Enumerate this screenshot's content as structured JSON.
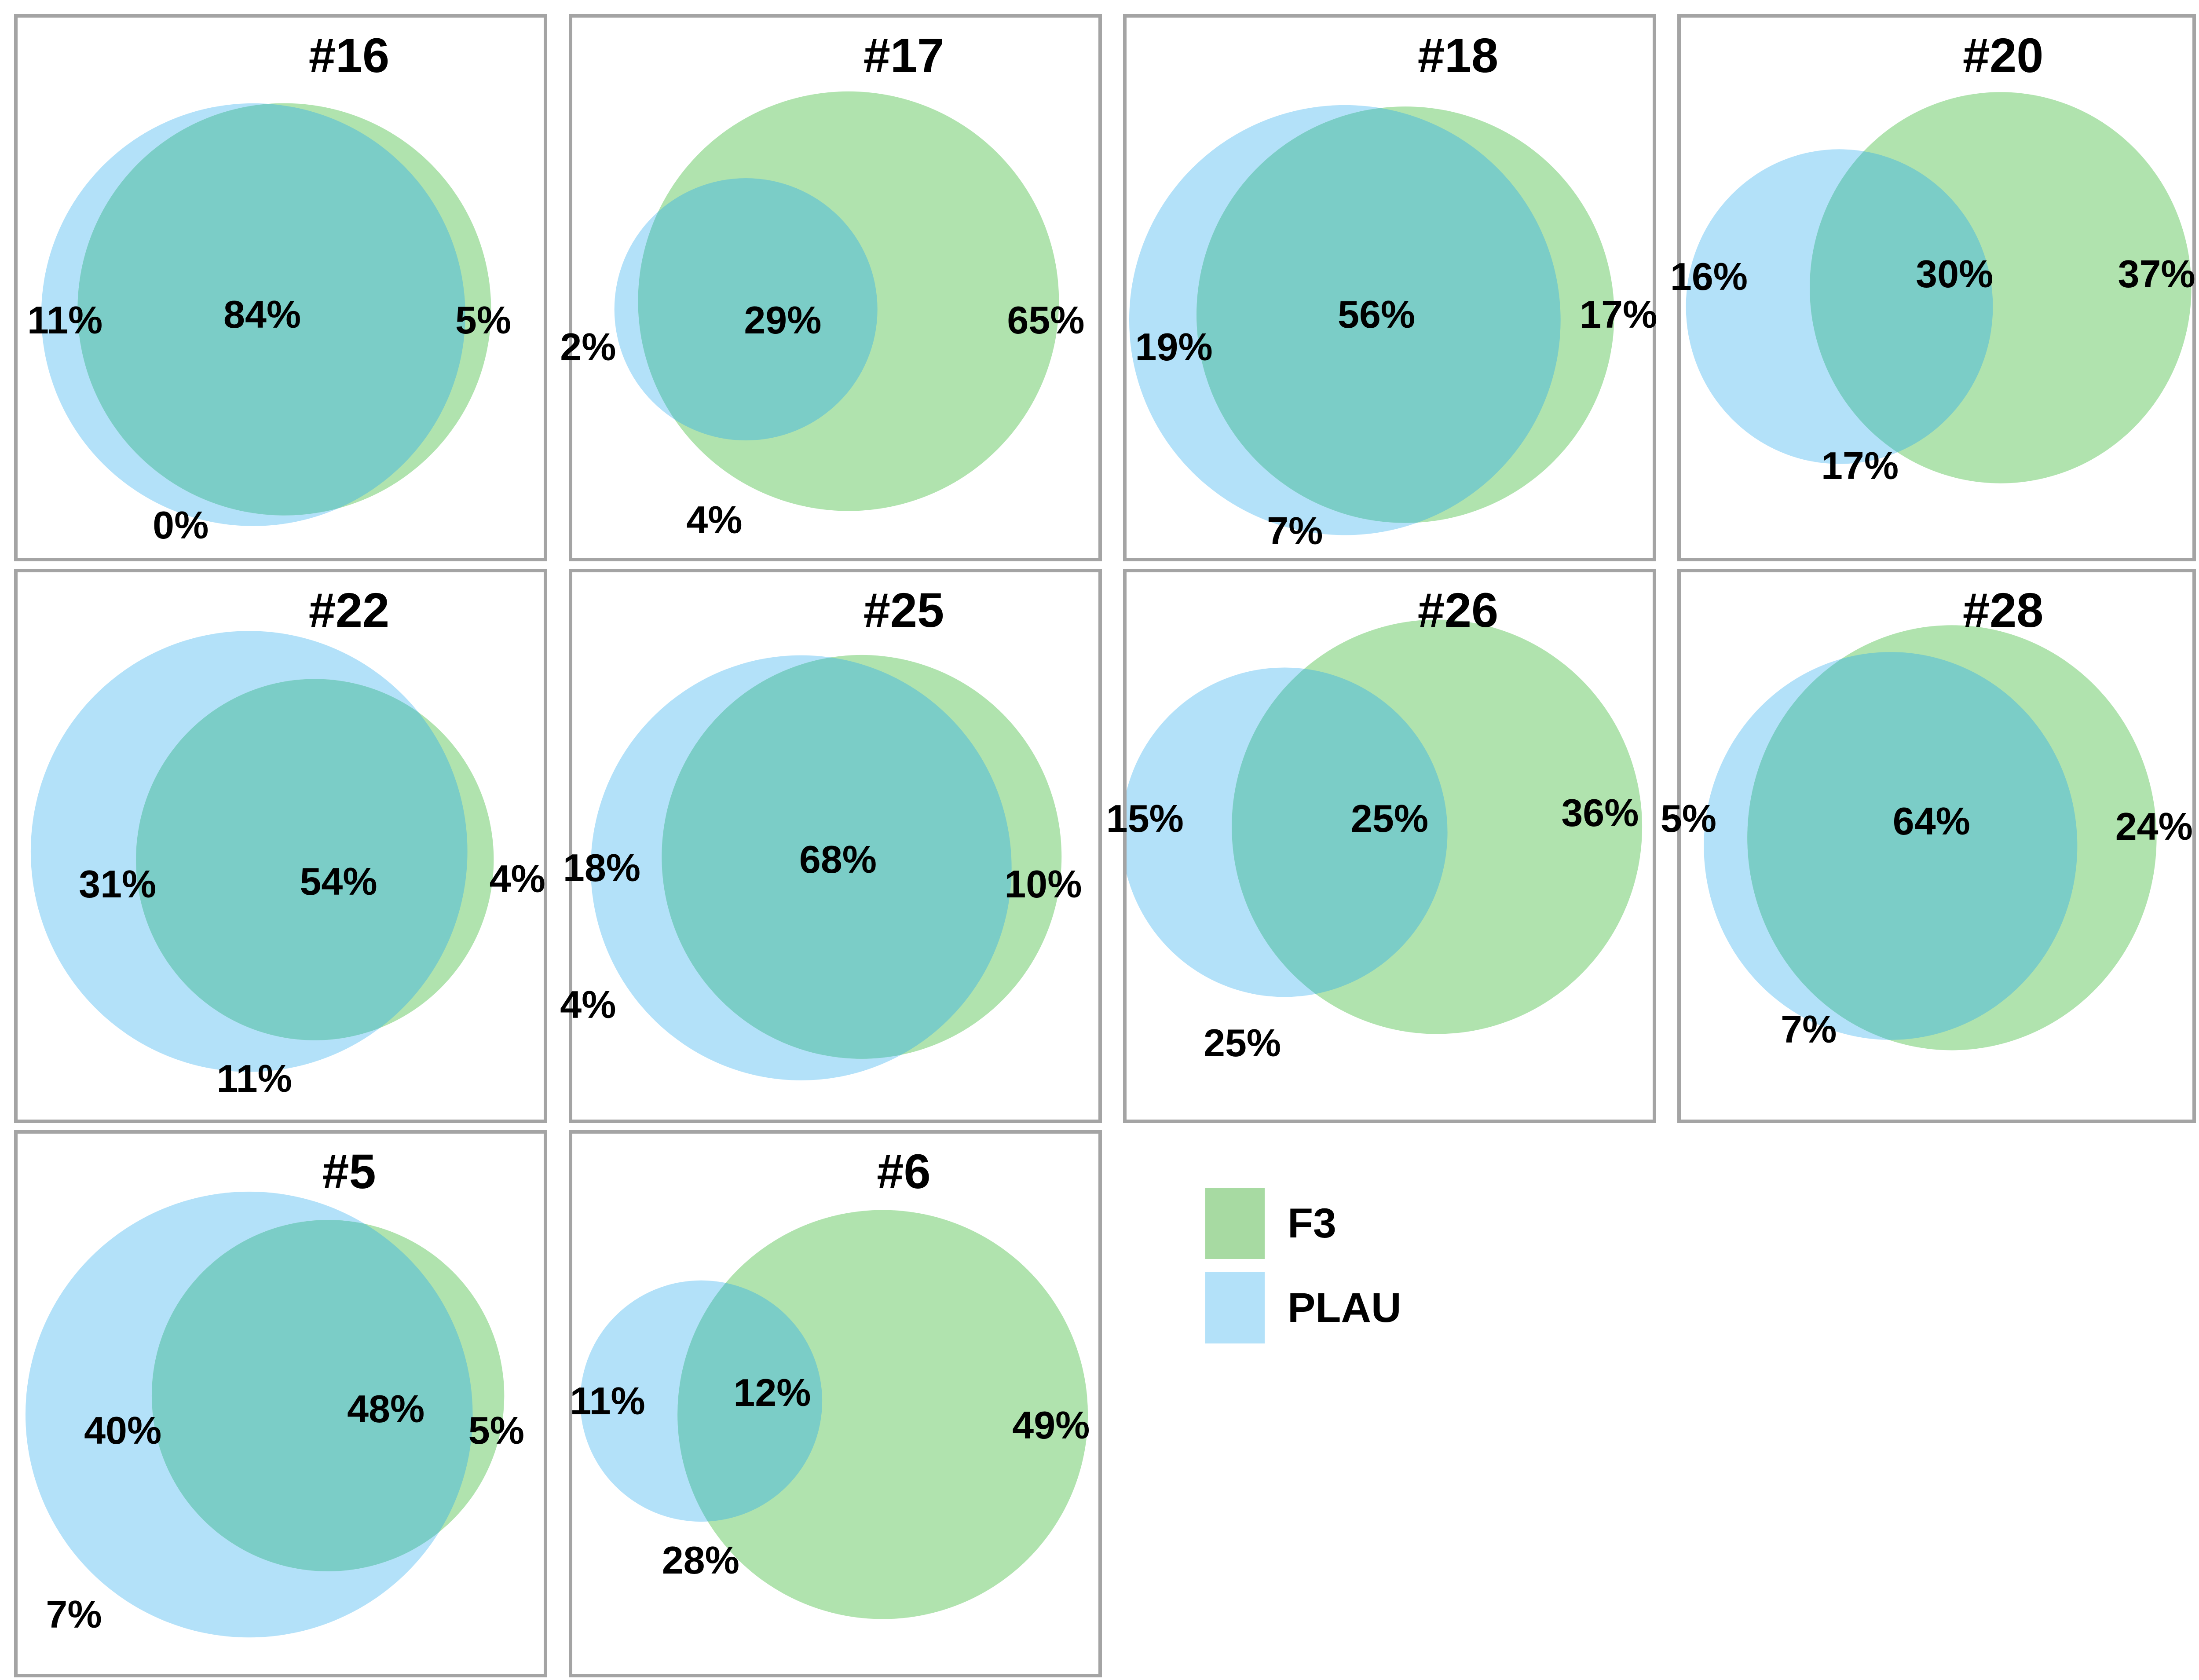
{
  "colors": {
    "f3_fill": "#b0e3ae",
    "plau_fill": "#b3e1f9",
    "overlap_fill": "#7bcdc7",
    "legend_f3": "#a7daa2",
    "legend_plau": "#b3e1f9",
    "panel_border": "#a4a4a4",
    "text": "#000000"
  },
  "chart_data": {
    "type": "venn",
    "legend": [
      {
        "label": "F3",
        "color": "#a7daa2"
      },
      {
        "label": "PLAU",
        "color": "#b3e1f9"
      }
    ],
    "panels": [
      {
        "title": "#16",
        "sets": {
          "plau_only": 11,
          "overlap": 84,
          "f3_only": 5,
          "neither": 0
        },
        "blue": {
          "cx": 44.8,
          "cy": 55.0,
          "r": 40.3
        },
        "green": {
          "cx": 50.7,
          "cy": 54.0,
          "r": 39.3
        },
        "labels": [
          {
            "text": "11%",
            "x": 9.0,
            "y": 56.0
          },
          {
            "text": "84%",
            "x": 46.5,
            "y": 55.0
          },
          {
            "text": "5%",
            "x": 88.5,
            "y": 56.0
          },
          {
            "text": "0%",
            "x": 31.0,
            "y": 94.0
          }
        ]
      },
      {
        "title": "#17",
        "sets": {
          "plau_only": 2,
          "overlap": 29,
          "f3_only": 65,
          "neither": 4
        },
        "blue": {
          "cx": 33.0,
          "cy": 54.0,
          "r": 25.0
        },
        "green": {
          "cx": 52.5,
          "cy": 52.5,
          "r": 40.0
        },
        "labels": [
          {
            "text": "2%",
            "x": 3.0,
            "y": 61.0
          },
          {
            "text": "29%",
            "x": 40.0,
            "y": 56.0
          },
          {
            "text": "65%",
            "x": 90.0,
            "y": 56.0
          },
          {
            "text": "4%",
            "x": 27.0,
            "y": 93.0
          }
        ]
      },
      {
        "title": "#18",
        "sets": {
          "plau_only": 19,
          "overlap": 56,
          "f3_only": 17,
          "neither": 7
        },
        "blue": {
          "cx": 41.5,
          "cy": 56.0,
          "r": 41.0
        },
        "green": {
          "cx": 53.0,
          "cy": 55.0,
          "r": 39.7
        },
        "labels": [
          {
            "text": "19%",
            "x": 9.0,
            "y": 61.0
          },
          {
            "text": "56%",
            "x": 47.5,
            "y": 55.0
          },
          {
            "text": "17%",
            "x": 93.5,
            "y": 55.0
          },
          {
            "text": "7%",
            "x": 32.0,
            "y": 95.0
          }
        ]
      },
      {
        "title": "#20",
        "sets": {
          "plau_only": 16,
          "overlap": 30,
          "f3_only": 37,
          "neither": 17
        },
        "blue": {
          "cx": 31.0,
          "cy": 53.5,
          "r": 30.0
        },
        "green": {
          "cx": 62.5,
          "cy": 50.0,
          "r": 37.3
        },
        "labels": [
          {
            "text": "16%",
            "x": 5.5,
            "y": 48.0
          },
          {
            "text": "30%",
            "x": 53.5,
            "y": 47.5
          },
          {
            "text": "37%",
            "x": 93.0,
            "y": 47.5
          },
          {
            "text": "17%",
            "x": 35.0,
            "y": 83.0
          }
        ]
      },
      {
        "title": "#22",
        "sets": {
          "plau_only": 31,
          "overlap": 54,
          "f3_only": 4,
          "neither": 11
        },
        "blue": {
          "cx": 44.0,
          "cy": 51.0,
          "r": 41.5
        },
        "green": {
          "cx": 56.5,
          "cy": 52.5,
          "r": 34.0
        },
        "labels": [
          {
            "text": "31%",
            "x": 19.0,
            "y": 57.0
          },
          {
            "text": "54%",
            "x": 61.0,
            "y": 56.5
          },
          {
            "text": "4%",
            "x": 95.0,
            "y": 56.0
          },
          {
            "text": "11%",
            "x": 45.0,
            "y": 92.5
          }
        ]
      },
      {
        "title": "#25",
        "sets": {
          "plau_only": 18,
          "overlap": 68,
          "f3_only": 10,
          "neither": 4
        },
        "blue": {
          "cx": 43.5,
          "cy": 54.0,
          "r": 40.0
        },
        "green": {
          "cx": 55.0,
          "cy": 52.0,
          "r": 38.0
        },
        "labels": [
          {
            "text": "18%",
            "x": 5.6,
            "y": 54.0
          },
          {
            "text": "68%",
            "x": 50.5,
            "y": 52.5
          },
          {
            "text": "10%",
            "x": 89.5,
            "y": 57.0
          },
          {
            "text": "4%",
            "x": 3.0,
            "y": 79.0
          }
        ]
      },
      {
        "title": "#26",
        "sets": {
          "plau_only": 15,
          "overlap": 25,
          "f3_only": 36,
          "neither": 25
        },
        "blue": {
          "cx": 30.0,
          "cy": 47.5,
          "r": 31.0
        },
        "green": {
          "cx": 59.0,
          "cy": 46.5,
          "r": 39.0
        },
        "labels": [
          {
            "text": "15%",
            "x": 3.5,
            "y": 45.0
          },
          {
            "text": "25%",
            "x": 50.0,
            "y": 45.0
          },
          {
            "text": "36%",
            "x": 90.0,
            "y": 44.0
          },
          {
            "text": "25%",
            "x": 22.0,
            "y": 86.0
          }
        ]
      },
      {
        "title": "#28",
        "sets": {
          "plau_only": 5,
          "overlap": 64,
          "f3_only": 24,
          "neither": 7
        },
        "blue": {
          "cx": 41.0,
          "cy": 50.0,
          "r": 36.5
        },
        "green": {
          "cx": 53.0,
          "cy": 48.5,
          "r": 40.0
        },
        "labels": [
          {
            "text": "5%",
            "x": 1.5,
            "y": 45.0
          },
          {
            "text": "64%",
            "x": 49.0,
            "y": 45.5
          },
          {
            "text": "24%",
            "x": 92.5,
            "y": 46.5
          },
          {
            "text": "7%",
            "x": 25.0,
            "y": 83.5
          }
        ]
      },
      {
        "title": "#5",
        "sets": {
          "plau_only": 40,
          "overlap": 48,
          "f3_only": 5,
          "neither": 7
        },
        "blue": {
          "cx": 44.0,
          "cy": 52.0,
          "r": 42.5
        },
        "green": {
          "cx": 59.0,
          "cy": 48.5,
          "r": 33.5
        },
        "labels": [
          {
            "text": "40%",
            "x": 20.0,
            "y": 55.0
          },
          {
            "text": "48%",
            "x": 70.0,
            "y": 51.0
          },
          {
            "text": "5%",
            "x": 91.0,
            "y": 55.0
          },
          {
            "text": "7%",
            "x": 10.7,
            "y": 89.0
          }
        ]
      },
      {
        "title": "#6",
        "sets": {
          "plau_only": 11,
          "overlap": 12,
          "f3_only": 49,
          "neither": 28
        },
        "blue": {
          "cx": 24.5,
          "cy": 49.5,
          "r": 23.0
        },
        "green": {
          "cx": 59.0,
          "cy": 52.0,
          "r": 39.0
        },
        "labels": [
          {
            "text": "11%",
            "x": 6.7,
            "y": 49.5
          },
          {
            "text": "12%",
            "x": 38.0,
            "y": 48.0
          },
          {
            "text": "49%",
            "x": 91.0,
            "y": 54.0
          },
          {
            "text": "28%",
            "x": 24.4,
            "y": 79.0
          }
        ]
      }
    ]
  }
}
